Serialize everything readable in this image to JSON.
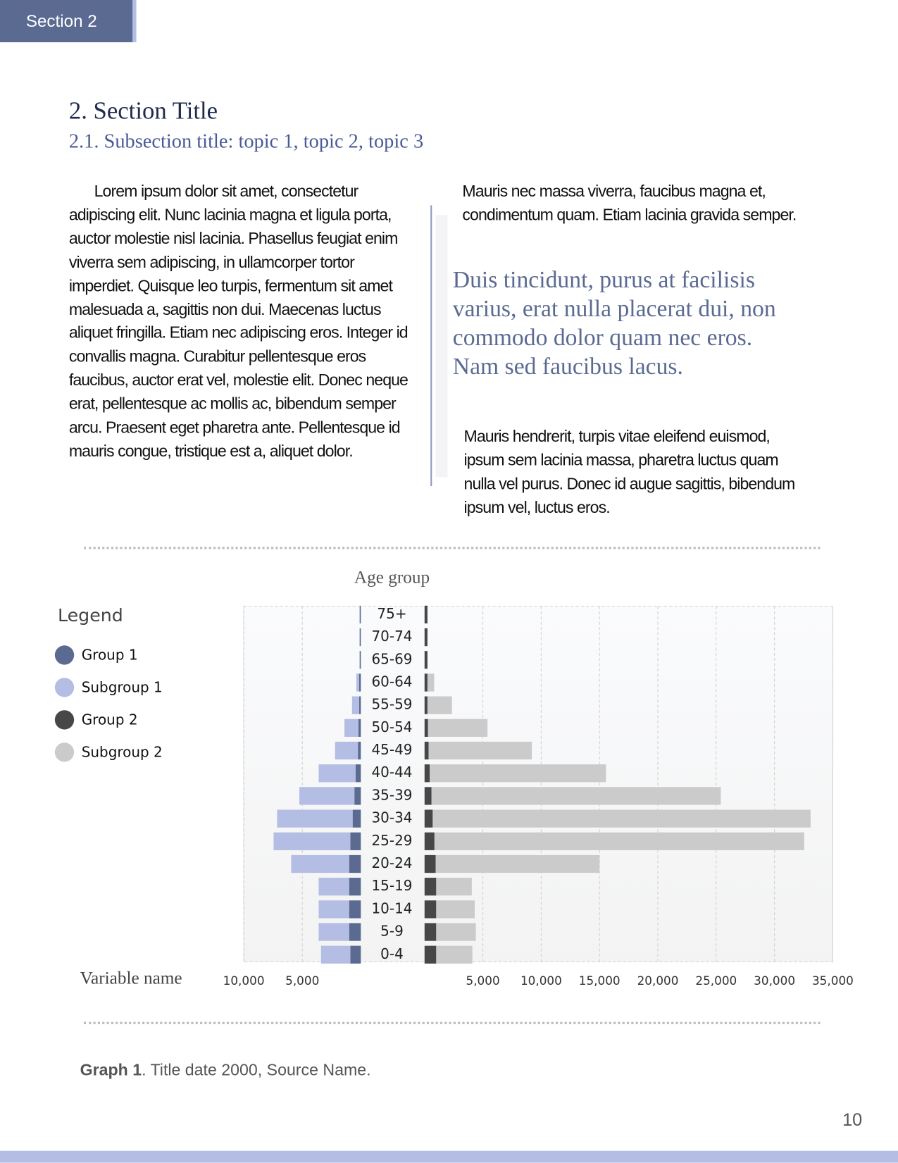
{
  "header": {
    "section": "Section 2"
  },
  "heading": {
    "title": "2. Section Title",
    "subtitle": "2.1. Subsection title: topic 1, topic 2, topic 3"
  },
  "body": {
    "left": "Lorem ipsum dolor sit amet, consectetur adipiscing elit. Nunc lacinia magna et ligula porta, auctor molestie nisl lacinia. Phasellus feugiat enim viverra sem adipiscing, in ullamcorper tortor imperdiet. Quisque leo turpis, fermentum sit amet malesuada a, sagittis non dui. Maecenas luctus aliquet fringilla. Etiam nec adipiscing eros. Integer id convallis magna. Curabitur pellentesque eros faucibus, auctor erat vel, molestie elit. Donec neque erat, pellentesque ac mollis ac, bibendum semper arcu. Praesent eget pharetra ante. Pellentesque id mauris congue, tristique est a, aliquet dolor.",
    "right_top": "Mauris nec massa viverra, faucibus magna et, condimentum quam. Etiam lacinia gravida semper.",
    "pull_quote": "Duis tincidunt, purus at facilisis varius, erat nulla placerat dui, non commodo dolor quam nec eros. Nam sed faucibus lacus.",
    "right_bottom": "Mauris hendrerit, turpis vitae eleifend euismod, ipsum sem lacinia massa, pharetra luctus quam nulla vel purus. Donec id augue sagittis, bibendum ipsum vel, luctus eros."
  },
  "chart_data": {
    "type": "pyramid",
    "title": "Age group",
    "x_label": "Variable name",
    "legend_title": "Legend",
    "categories": [
      "75+",
      "70-74",
      "65-69",
      "60-64",
      "55-59",
      "50-54",
      "45-49",
      "40-44",
      "35-39",
      "30-34",
      "25-29",
      "20-24",
      "15-19",
      "10-14",
      "5-9",
      "0-4"
    ],
    "series": [
      {
        "name": "Group 1",
        "side": "left",
        "color": "#5b6a91",
        "values": [
          100,
          100,
          100,
          150,
          150,
          200,
          250,
          450,
          550,
          700,
          900,
          1000,
          1000,
          1000,
          1000,
          900
        ]
      },
      {
        "name": "Subgroup 1",
        "side": "left",
        "color": "#b4bde3",
        "values": [
          0,
          0,
          0,
          230,
          600,
          1200,
          1950,
          3150,
          4700,
          6450,
          6550,
          4950,
          2600,
          2600,
          2600,
          2500
        ]
      },
      {
        "name": "Group 2",
        "side": "right",
        "color": "#474747",
        "values": [
          250,
          250,
          250,
          250,
          250,
          300,
          350,
          450,
          600,
          700,
          850,
          950,
          1000,
          1000,
          1000,
          1000
        ]
      },
      {
        "name": "Subgroup 2",
        "side": "right",
        "color": "#cbcbcb",
        "values": [
          0,
          0,
          0,
          575,
          2100,
          5100,
          8850,
          15100,
          24800,
          32400,
          31700,
          14050,
          3050,
          3300,
          3400,
          3100
        ]
      }
    ],
    "left_xlim": [
      0,
      10000
    ],
    "left_xticks": [
      {
        "value": 10000,
        "label": "10,000"
      },
      {
        "value": 5000,
        "label": "5,000"
      }
    ],
    "right_xlim": [
      0,
      35000
    ],
    "right_xticks": [
      {
        "value": 5000,
        "label": "5,000"
      },
      {
        "value": 10000,
        "label": "10,000"
      },
      {
        "value": 15000,
        "label": "15,000"
      },
      {
        "value": 20000,
        "label": "20,000"
      },
      {
        "value": 25000,
        "label": "25,000"
      },
      {
        "value": 30000,
        "label": "30,000"
      },
      {
        "value": 35000,
        "label": "35,000"
      }
    ],
    "grid": true
  },
  "caption": {
    "label": "Graph 1",
    "text": ". Title date 2000, Source Name."
  },
  "page_number": "10"
}
